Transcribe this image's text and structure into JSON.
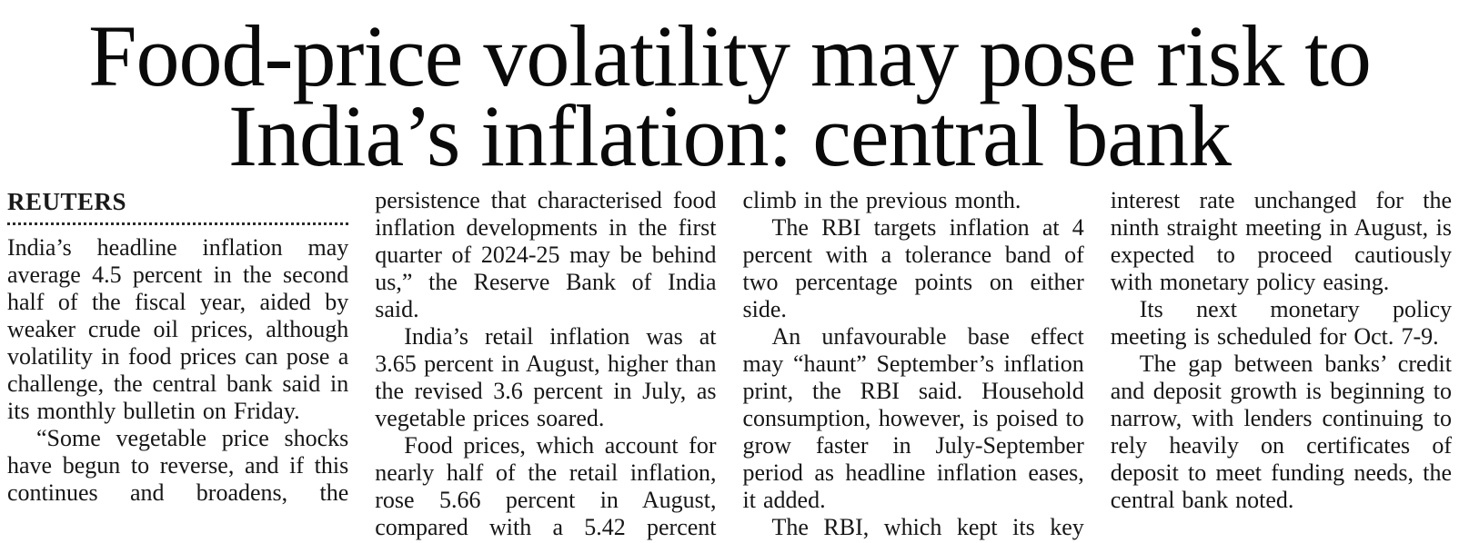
{
  "article": {
    "headline": "Food-price volatility may pose risk to India’s inflation: central bank",
    "byline": "REUTERS",
    "columns": [
      {
        "paragraphs": [
          "India’s headline inflation may average 4.5 percent in the second half of the fiscal year, aided by weaker crude oil prices, although volatility in food prices can pose a challenge, the central bank said in its monthly bulletin on Friday.",
          "“Some vegetable price shocks have begun to reverse, and if this continues and broadens, the"
        ]
      },
      {
        "paragraphs": [
          "persistence that characterised food inflation developments in the first quarter of 2024-25 may be behind us,” the Reserve Bank of India said.",
          "India’s retail inflation was at 3.65 percent in August, higher than the revised 3.6 percent in July, as vegetable prices soared.",
          "Food prices, which account for nearly half of the retail inflation, rose 5.66 percent in August, compared with a 5.42 percent"
        ]
      },
      {
        "paragraphs": [
          "climb in the previous month.",
          "The RBI targets inflation at 4 percent with a tolerance band of two percentage points on either side.",
          "An unfavourable base effect may “haunt” September’s inflation print, the RBI said. Household consumption, however, is poised to grow faster in July-September period as headline inflation eases, it added.",
          "The RBI, which kept its key"
        ]
      },
      {
        "paragraphs": [
          "interest rate unchanged for the ninth straight meeting in August, is expected to proceed cautiously with monetary policy easing.",
          "Its next monetary policy meeting is scheduled for Oct. 7-9.",
          "The gap between banks’ credit and deposit growth is beginning to narrow, with lenders continuing to rely heavily on certificates of deposit to meet funding needs, the central bank noted."
        ]
      }
    ]
  }
}
